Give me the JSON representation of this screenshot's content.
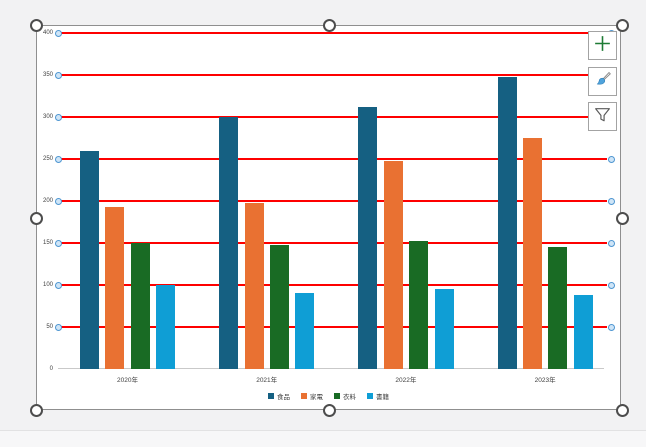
{
  "chart_data": {
    "type": "bar",
    "title": "",
    "categories": [
      "2020年",
      "2021年",
      "2022年",
      "2023年"
    ],
    "series": [
      {
        "name": "食品",
        "color": "#156082",
        "values": [
          260,
          300,
          312,
          348
        ]
      },
      {
        "name": "家電",
        "color": "#E97132",
        "values": [
          193,
          198,
          248,
          275
        ]
      },
      {
        "name": "衣料",
        "color": "#196B24",
        "values": [
          150,
          148,
          152,
          145
        ]
      },
      {
        "name": "書籍",
        "color": "#0F9ED5",
        "values": [
          100,
          90,
          95,
          88
        ]
      }
    ],
    "y_axis": {
      "min": 0,
      "max": 400,
      "step": 50,
      "tick_labels": [
        "0",
        "50",
        "100",
        "150",
        "200",
        "250",
        "300",
        "350",
        "400"
      ]
    },
    "xlabel": "",
    "ylabel": "",
    "grid": "on",
    "gridline_color": "#FE0000",
    "legend_position": "bottom"
  },
  "selection": {
    "state": "gridlines-selected",
    "gridline_handle_fill": "#CFE5F7",
    "gridline_handle_border": "#4E96D1",
    "frame_handle_border": "#4D4D4D"
  },
  "chart_tools": {
    "buttons": [
      {
        "id": "chart-elements",
        "icon": "plus-icon",
        "icon_color": "#1E7B34"
      },
      {
        "id": "chart-styles",
        "icon": "paintbrush-icon",
        "icon_color": "#4FA3DC"
      },
      {
        "id": "chart-filters",
        "icon": "funnel-icon",
        "icon_color": "#595959"
      }
    ]
  }
}
